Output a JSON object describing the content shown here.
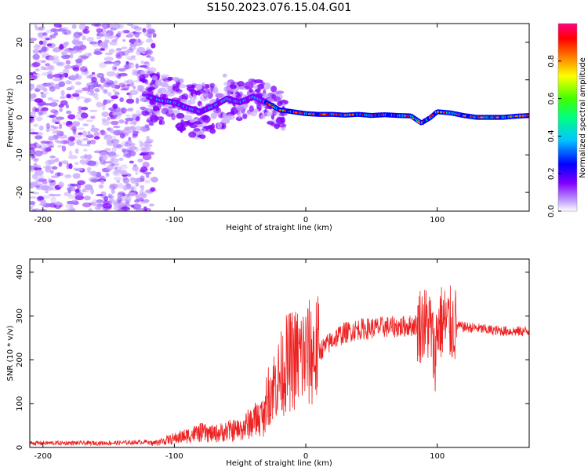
{
  "title": "S150.2023.076.15.04.G01",
  "chart_data": [
    {
      "type": "heatmap",
      "xlabel": "Height of straight line (km)",
      "ylabel": "Frequency (Hz)",
      "xlim": [
        -210,
        170
      ],
      "ylim": [
        -25,
        25
      ],
      "xticks": [
        -200,
        -100,
        0,
        100
      ],
      "yticks": [
        -20,
        -10,
        0,
        10,
        20
      ],
      "colorbar": {
        "label": "Normalized spectral amplitude",
        "range": [
          0.0,
          1.0
        ],
        "ticks": [
          "0.0",
          "0.2",
          "0.4",
          "0.6",
          "0.8"
        ],
        "colormap": [
          "#ffffff",
          "#c8a8ff",
          "#8000ff",
          "#0000ff",
          "#00c8ff",
          "#00ff80",
          "#40ff00",
          "#ffff00",
          "#ff8000",
          "#ff0000",
          "#ff0080"
        ]
      },
      "ridge": [
        {
          "x": -120,
          "f": 5.5
        },
        {
          "x": -110,
          "f": 4.5
        },
        {
          "x": -100,
          "f": 4
        },
        {
          "x": -90,
          "f": 2.5
        },
        {
          "x": -80,
          "f": 1.5
        },
        {
          "x": -70,
          "f": 3
        },
        {
          "x": -60,
          "f": 5
        },
        {
          "x": -50,
          "f": 4
        },
        {
          "x": -40,
          "f": 5.5
        },
        {
          "x": -30,
          "f": 4
        },
        {
          "x": -20,
          "f": 2
        },
        {
          "x": -10,
          "f": 1.5
        },
        {
          "x": 0,
          "f": 1
        },
        {
          "x": 10,
          "f": 0.8
        },
        {
          "x": 20,
          "f": 0.8
        },
        {
          "x": 30,
          "f": 0.6
        },
        {
          "x": 40,
          "f": 0.8
        },
        {
          "x": 50,
          "f": 0.5
        },
        {
          "x": 60,
          "f": 0.7
        },
        {
          "x": 70,
          "f": 0.5
        },
        {
          "x": 80,
          "f": 0.4
        },
        {
          "x": 88,
          "f": -1.5
        },
        {
          "x": 95,
          "f": 0
        },
        {
          "x": 100,
          "f": 1.5
        },
        {
          "x": 110,
          "f": 1.2
        },
        {
          "x": 120,
          "f": 0.5
        },
        {
          "x": 130,
          "f": 0
        },
        {
          "x": 140,
          "f": 0
        },
        {
          "x": 150,
          "f": 0
        },
        {
          "x": 160,
          "f": 0.3
        },
        {
          "x": 170,
          "f": 0.5
        }
      ]
    },
    {
      "type": "line",
      "xlabel": "Height of straight line (km)",
      "ylabel": "SNR (10 * v/v)",
      "xlim": [
        -210,
        170
      ],
      "ylim": [
        0,
        430
      ],
      "xticks": [
        -200,
        -100,
        0,
        100
      ],
      "yticks": [
        0,
        100,
        200,
        300,
        400
      ],
      "color": "#ee2222",
      "series": [
        {
          "x": [
            -210,
            -180,
            -150,
            -125,
            -115,
            -100,
            -90,
            -80,
            -70,
            -60,
            -50,
            -40,
            -35,
            -30,
            -25,
            -20,
            -15,
            -10,
            -5,
            0,
            5,
            10,
            15,
            20,
            25,
            30,
            40,
            50,
            60,
            70,
            80,
            85,
            90,
            95,
            98,
            100,
            102,
            105,
            110,
            120,
            130,
            140,
            150,
            160,
            170
          ],
          "values": [
            10,
            10,
            10,
            12,
            15,
            30,
            40,
            50,
            45,
            55,
            60,
            90,
            100,
            110,
            140,
            160,
            190,
            200,
            205,
            210,
            215,
            220,
            230,
            245,
            255,
            262,
            270,
            272,
            275,
            275,
            278,
            280,
            282,
            278,
            200,
            270,
            285,
            285,
            280,
            275,
            272,
            268,
            266,
            265,
            265
          ]
        }
      ]
    }
  ]
}
